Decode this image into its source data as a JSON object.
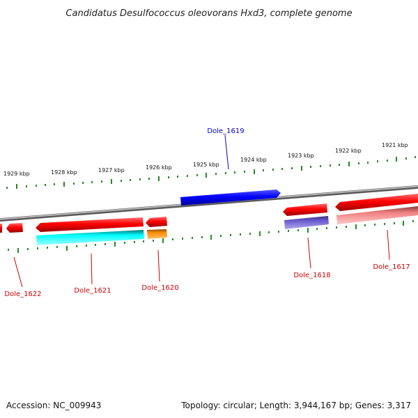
{
  "title": "Candidatus Desulfococcus oleovorans Hxd3, complete genome",
  "scale_labels": [
    "1929 kbp",
    "1928 kbp",
    "1927 kbp",
    "1926 kbp",
    "1925 kbp",
    "1924 kbp",
    "1923 kbp",
    "1922 kbp",
    "1921 kbp"
  ],
  "genes": {
    "dole_1619": "Dole_1619",
    "dole_1622": "Dole_1622",
    "dole_1621": "Dole_1621",
    "dole_1620": "Dole_1620",
    "dole_1618": "Dole_1618",
    "dole_1617": "Dole_1617"
  },
  "footer": {
    "accession": "Accession: NC_009943",
    "summary": "Topology: circular; Length: 3,944,167 bp; Genes: 3,317"
  },
  "colors": {
    "backbone": "#808080",
    "ticks": "#228b22",
    "label_forward": "#0000cc",
    "label_reverse": "#cc0000",
    "gene_blue": "#0000ff",
    "gene_red": "#ff0000",
    "gene_cyan": "#00ffff",
    "gene_orange": "#ff8c00",
    "gene_slate": "#6a5acd",
    "gene_pink": "#f08080"
  }
}
